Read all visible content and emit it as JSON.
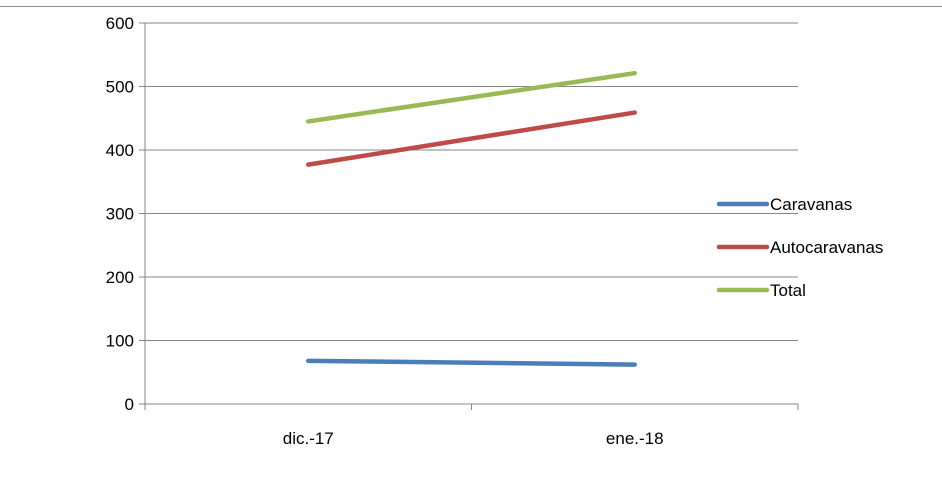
{
  "chart_data": {
    "type": "line",
    "categories": [
      "dic.-17",
      "ene.-18"
    ],
    "series": [
      {
        "name": "Caravanas",
        "values": [
          68,
          62
        ],
        "color": "#4a7ebb"
      },
      {
        "name": "Autocaravanas",
        "values": [
          377,
          459
        ],
        "color": "#be4b48"
      },
      {
        "name": "Total",
        "values": [
          445,
          521
        ],
        "color": "#98b954"
      }
    ],
    "ylim": [
      0,
      600
    ],
    "yticks": [
      0,
      100,
      200,
      300,
      400,
      500,
      600
    ],
    "grid": true,
    "legend": "right",
    "title": "",
    "xlabel": "",
    "ylabel": ""
  }
}
